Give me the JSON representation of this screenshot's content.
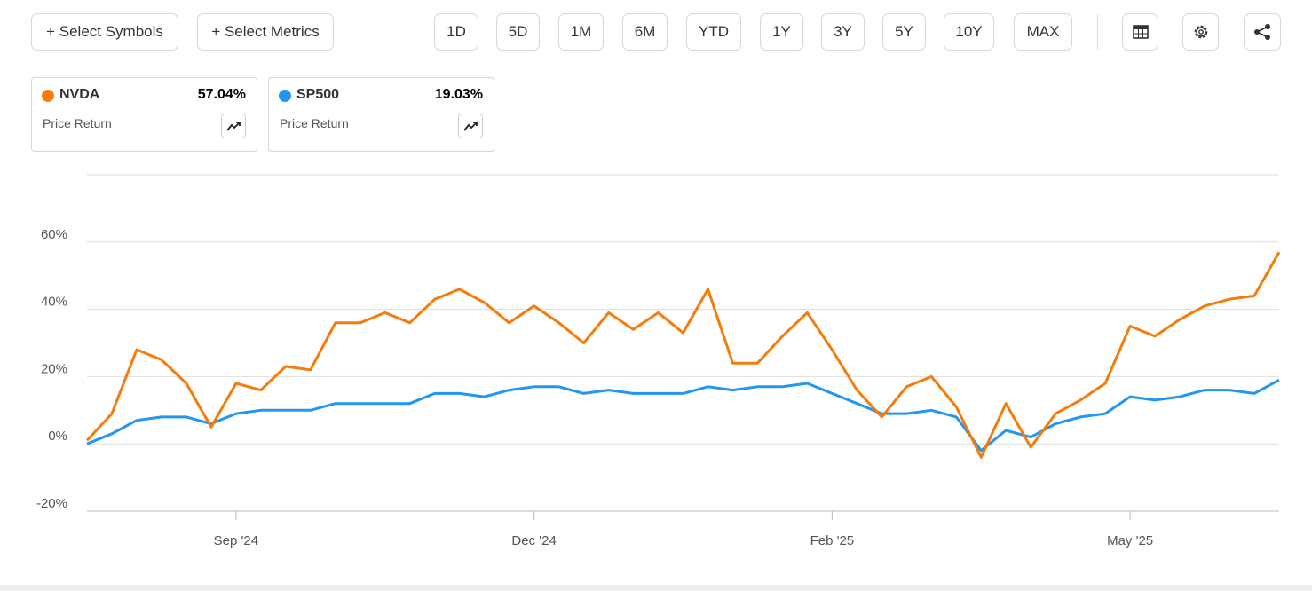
{
  "toolbar": {
    "actions": [
      "+ Select Symbols",
      "+ Select Metrics"
    ],
    "ranges": [
      "1D",
      "5D",
      "1M",
      "6M",
      "YTD",
      "1Y",
      "3Y",
      "5Y",
      "10Y",
      "MAX"
    ]
  },
  "cards": [
    {
      "value": "57.04%",
      "metric": "Price Return"
    },
    {
      "value": "19.03%",
      "metric": "Price Return"
    }
  ],
  "chart_data": {
    "type": "line",
    "categories": [
      null,
      null,
      null,
      null,
      null,
      null,
      "Sep '24",
      null,
      null,
      null,
      null,
      null,
      null,
      null,
      null,
      null,
      null,
      null,
      "Dec '24",
      null,
      null,
      null,
      null,
      null,
      null,
      null,
      null,
      null,
      null,
      null,
      "Feb '25",
      null,
      null,
      null,
      null,
      null,
      null,
      null,
      null,
      null,
      null,
      null,
      "May '25",
      null,
      null,
      null,
      null,
      null,
      null
    ],
    "series": [
      {
        "name": "NVDA",
        "color": "#f57c0a",
        "values": [
          1,
          9,
          28,
          25,
          18,
          5,
          18,
          16,
          23,
          22,
          36,
          36,
          39,
          36,
          43,
          46,
          42,
          36,
          41,
          36,
          30,
          39,
          34,
          39,
          33,
          46,
          24,
          24,
          32,
          39,
          28,
          16,
          8,
          17,
          20,
          11,
          -4,
          12,
          -1,
          9,
          13,
          18,
          35,
          32,
          37,
          41,
          43,
          44,
          57
        ]
      },
      {
        "name": "SP500",
        "color": "#2196f3",
        "values": [
          0,
          3,
          7,
          8,
          8,
          6,
          9,
          10,
          10,
          10,
          12,
          12,
          12,
          12,
          15,
          15,
          14,
          16,
          17,
          17,
          15,
          16,
          15,
          15,
          15,
          17,
          16,
          17,
          17,
          18,
          15,
          12,
          9,
          9,
          10,
          8,
          -2,
          4,
          2,
          6,
          8,
          9,
          14,
          13,
          14,
          16,
          16,
          15,
          19
        ]
      }
    ],
    "ylim": [
      -20,
      80
    ],
    "yticks": [
      {
        "value": -20,
        "label": "-20%"
      },
      {
        "value": 0,
        "label": "0%"
      },
      {
        "value": 20,
        "label": "20%"
      },
      {
        "value": 40,
        "label": "40%"
      },
      {
        "value": 60,
        "label": "60%"
      }
    ],
    "grid": true
  }
}
